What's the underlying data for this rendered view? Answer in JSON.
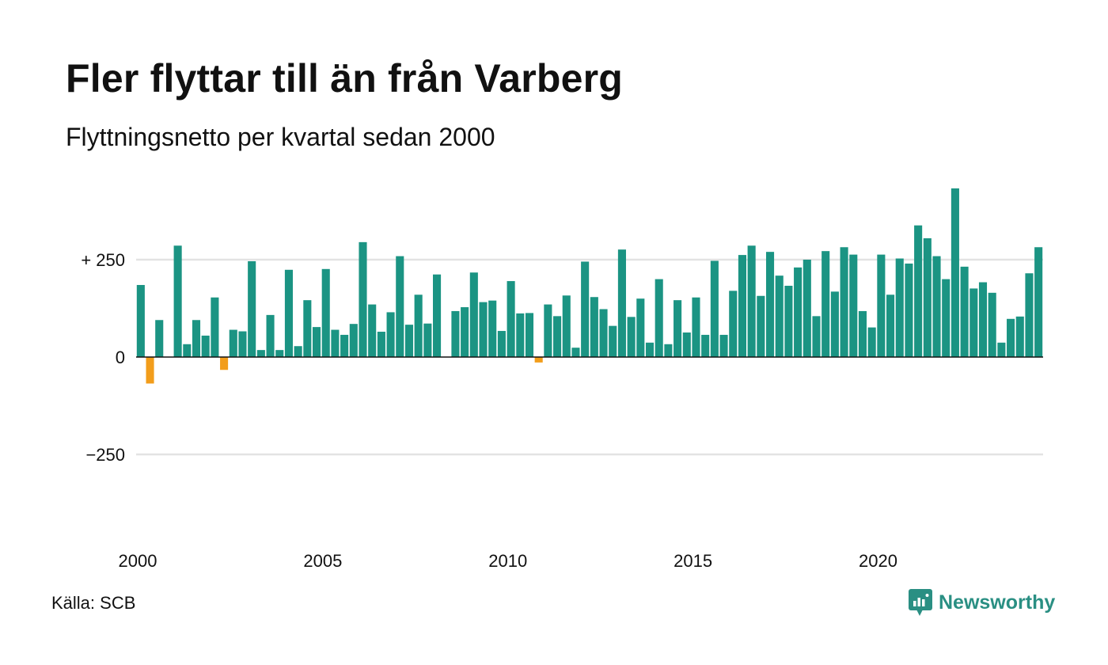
{
  "title": "Fler flyttar till än från Varberg",
  "subtitle": "Flyttningsnetto per kvartal sedan 2000",
  "source": "Källa: SCB",
  "brand": {
    "name": "Newsworthy",
    "icon": "newsworthy-logo-icon",
    "color": "#2a8f83"
  },
  "colors": {
    "positive": "#1b9483",
    "negative": "#f29d1b",
    "grid": "#e3e3e3",
    "zero_line": "#111111"
  },
  "chart_data": {
    "type": "bar",
    "title": "Fler flyttar till än från Varberg",
    "subtitle": "Flyttningsnetto per kvartal sedan 2000",
    "xlabel": "",
    "ylabel": "",
    "ylim": [
      -500,
      440
    ],
    "grid": true,
    "legend": "none",
    "y_ticks": [
      {
        "value": 250,
        "label": "+ 250"
      },
      {
        "value": 0,
        "label": "0"
      },
      {
        "value": -250,
        "label": "−250"
      }
    ],
    "x_ticks": [
      {
        "value": 2000,
        "label": "2000"
      },
      {
        "value": 2005,
        "label": "2005"
      },
      {
        "value": 2010,
        "label": "2010"
      },
      {
        "value": 2015,
        "label": "2015"
      },
      {
        "value": 2020,
        "label": "2020"
      }
    ],
    "start_year": 2000,
    "start_quarter": 1,
    "values": [
      185,
      -68,
      95,
      0,
      286,
      33,
      95,
      55,
      153,
      -33,
      70,
      66,
      246,
      18,
      108,
      18,
      224,
      28,
      146,
      77,
      226,
      70,
      57,
      85,
      295,
      135,
      65,
      115,
      259,
      83,
      160,
      86,
      212,
      0,
      118,
      128,
      217,
      141,
      145,
      67,
      195,
      112,
      113,
      -14,
      135,
      105,
      158,
      24,
      245,
      154,
      123,
      80,
      276,
      103,
      150,
      37,
      200,
      33,
      146,
      63,
      153,
      57,
      247,
      57,
      170,
      262,
      286,
      157,
      270,
      209,
      183,
      230,
      250,
      105,
      272,
      168,
      282,
      263,
      118,
      76,
      263,
      160,
      253,
      240,
      338,
      305,
      259,
      200,
      433,
      232,
      176,
      192,
      165,
      37,
      98,
      104,
      215,
      282
    ]
  }
}
